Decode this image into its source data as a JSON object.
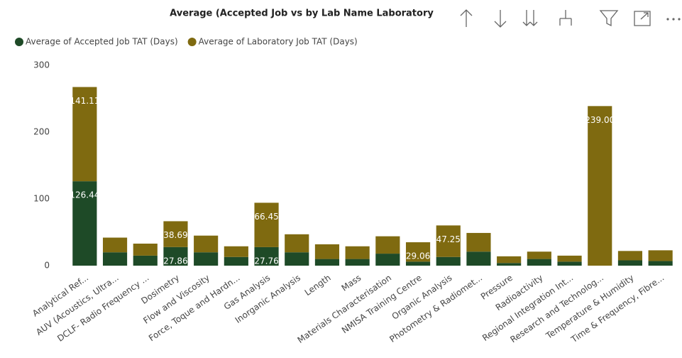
{
  "chart_data": {
    "type": "stacked_bar",
    "title": "Average (Accepted Job vs by Lab Name Laboratory",
    "categories": [
      "Analytical Ref...",
      "AUV (Acoustics, Ultra...",
      "DCLF- Radio Frequency ...",
      "Dosimetry",
      "Flow and Viscosity",
      "Force, Toque and Hardn...",
      "Gas Analysis",
      "Inorganic Analysis",
      "Length",
      "Mass",
      "Materials Characterisation",
      "NMISA Training Centre",
      "Organic Analysis",
      "Photometry & Radiomet...",
      "Pressure",
      "Radioactivity",
      "Regional Integration Int...",
      "Research and Technolog...",
      "Temperature & Humidity",
      "Time & Frequency, Fibre..."
    ],
    "series": [
      {
        "name": "Average of Accepted Job TAT (Days)",
        "color": "#1e4a27",
        "values": [
          126.44,
          20,
          15,
          27.86,
          20,
          13,
          27.76,
          20,
          10,
          10,
          18,
          6,
          13,
          21,
          4,
          10,
          6,
          0,
          8,
          7
        ],
        "value_labels": [
          "126.44",
          null,
          null,
          "27.86",
          null,
          null,
          "27.76",
          null,
          null,
          null,
          null,
          null,
          null,
          null,
          null,
          null,
          null,
          null,
          null,
          null
        ]
      },
      {
        "name": "Average of Laboratory Job TAT (Days)",
        "color": "#7f6a10",
        "values": [
          141.11,
          22,
          18,
          38.69,
          25,
          16,
          66.45,
          27,
          22,
          19,
          26,
          29.06,
          47.25,
          28,
          10,
          11,
          9,
          239,
          14,
          16
        ],
        "value_labels": [
          "141.11",
          null,
          null,
          "38.69",
          null,
          null,
          "66.45",
          null,
          null,
          null,
          null,
          "29.06",
          "47.25",
          null,
          null,
          null,
          null,
          "239.00",
          null,
          null
        ]
      }
    ],
    "ylim": [
      0,
      300
    ],
    "yticks": [
      0,
      100,
      200,
      300
    ],
    "grid": false
  }
}
